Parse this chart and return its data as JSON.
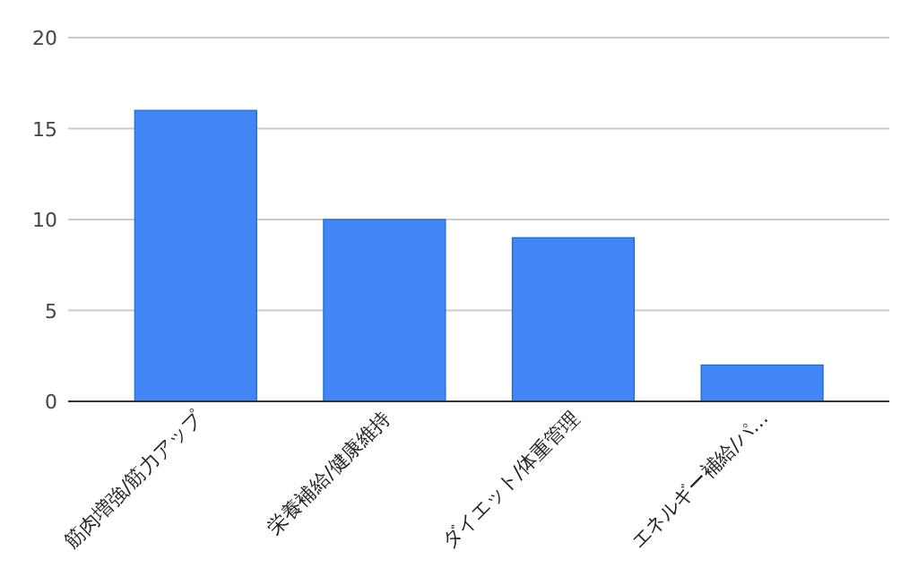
{
  "chart_data": {
    "type": "bar",
    "categories": [
      "筋肉増強/筋力アップ",
      "栄養補給/健康維持",
      "ダイエット/体重管理",
      "エネルギー補給/パ…"
    ],
    "values": [
      16,
      10,
      9,
      2
    ],
    "color": "#4285f4",
    "ylim": [
      0,
      20
    ],
    "yticks": [
      0,
      5,
      10,
      15,
      20
    ],
    "grid": "y"
  }
}
